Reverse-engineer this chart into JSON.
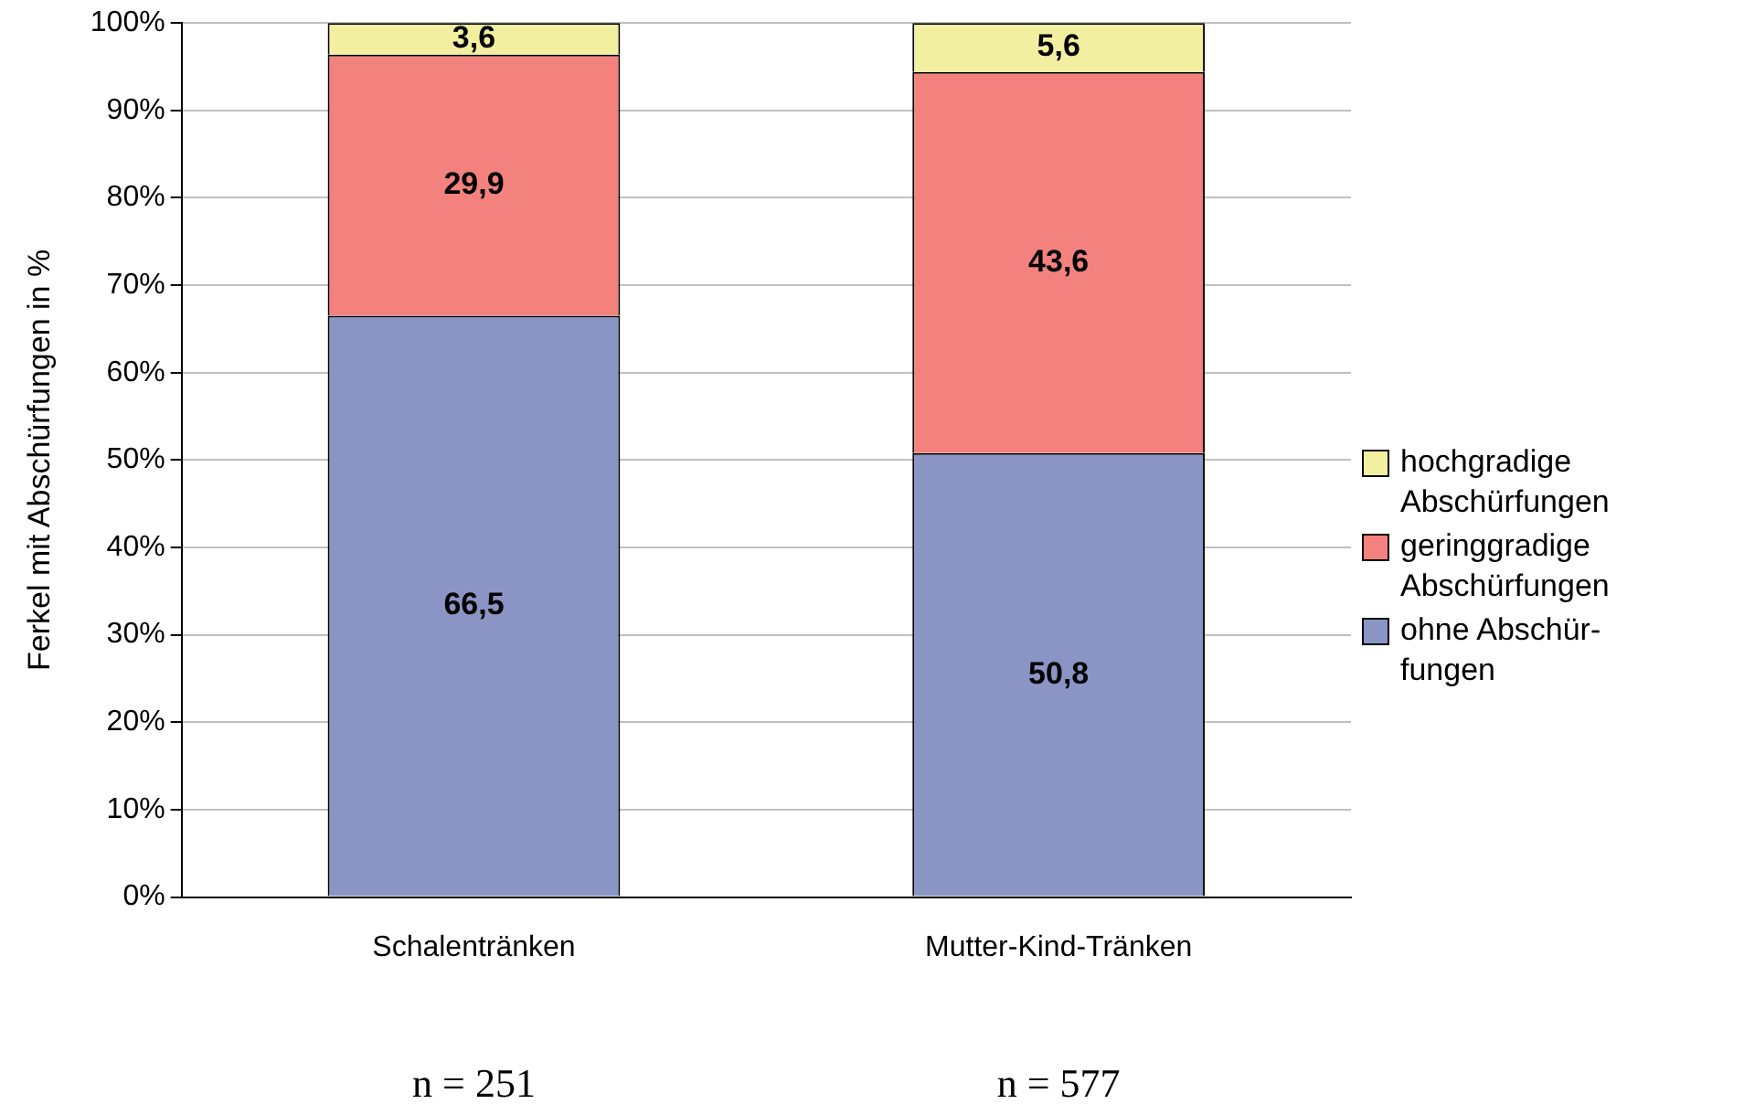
{
  "chart_data": {
    "type": "bar",
    "stacked": true,
    "ylabel": "Ferkel mit Abschürfungen in %",
    "categories": [
      "Schalentränken",
      "Mutter-Kind-Tränken"
    ],
    "series": [
      {
        "name": "ohne Abschür-\nfungen",
        "color": "#8b95c5",
        "values": [
          66.5,
          50.8
        ],
        "value_labels": [
          "66,5",
          "50,8"
        ]
      },
      {
        "name": "geringgradige\nAbschürfungen",
        "color": "#f3827e",
        "values": [
          29.9,
          43.6
        ],
        "value_labels": [
          "29,9",
          "43,6"
        ]
      },
      {
        "name": "hochgradige\nAbschürfungen",
        "color": "#f2f0a0",
        "values": [
          3.6,
          5.6
        ],
        "value_labels": [
          "3,6",
          "5,6"
        ]
      }
    ],
    "ylim": [
      0,
      100
    ],
    "yticks": [
      {
        "value": 0,
        "label": "0%"
      },
      {
        "value": 10,
        "label": "10%"
      },
      {
        "value": 20,
        "label": "20%"
      },
      {
        "value": 30,
        "label": "30%"
      },
      {
        "value": 40,
        "label": "40%"
      },
      {
        "value": 50,
        "label": "50%"
      },
      {
        "value": 60,
        "label": "60%"
      },
      {
        "value": 70,
        "label": "70%"
      },
      {
        "value": 80,
        "label": "80%"
      },
      {
        "value": 90,
        "label": "90%"
      },
      {
        "value": 100,
        "label": "100%"
      }
    ],
    "grid": "y",
    "legend": "right",
    "annotations": [
      "n = 251",
      "n = 577"
    ]
  }
}
